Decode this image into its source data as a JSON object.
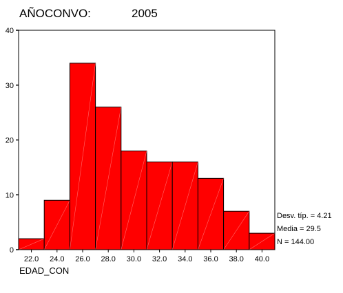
{
  "header": {
    "variable_label": "AÑOCONVO:",
    "variable_value": "2005"
  },
  "chart_data": {
    "type": "bar",
    "categories": [
      "22.0",
      "24.0",
      "26.0",
      "28.0",
      "30.0",
      "32.0",
      "34.0",
      "36.0",
      "38.0",
      "40.0"
    ],
    "values": [
      2,
      9,
      34,
      26,
      18,
      16,
      16,
      13,
      7,
      3
    ],
    "ylim": [
      0,
      40
    ],
    "yticks": [
      "0",
      "10",
      "20",
      "30",
      "40"
    ],
    "xlabel": "EDAD_CON",
    "ylabel": "",
    "grid": false,
    "bar_color": "#ff0000",
    "stats": [
      "Desv. típ. = 4.21",
      "Media = 29.5",
      "N = 144.00"
    ]
  }
}
